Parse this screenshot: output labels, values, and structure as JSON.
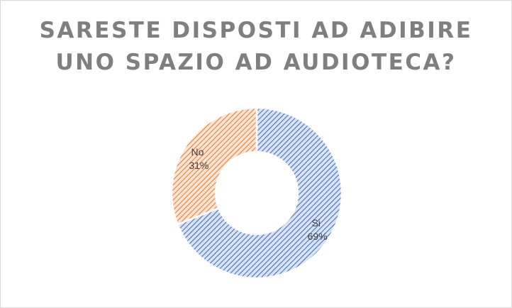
{
  "title_lines": [
    "SARESTE DISPOSTI AD ADIBIRE",
    "UNO SPAZIO AD AUDIOTECA?"
  ],
  "chart_data": {
    "type": "pie",
    "variant": "doughnut",
    "title": "SARESTE DISPOSTI AD ADIBIRE UNO SPAZIO AD AUDIOTECA?",
    "categories": [
      "Si",
      "No"
    ],
    "values": [
      69,
      31
    ],
    "labels": [
      {
        "name": "Si",
        "value": "69%"
      },
      {
        "name": "No",
        "value": "31%"
      }
    ],
    "colors": [
      "#4472C4",
      "#ED7D31"
    ],
    "fill": "diagonal hatch",
    "legend": "none"
  }
}
